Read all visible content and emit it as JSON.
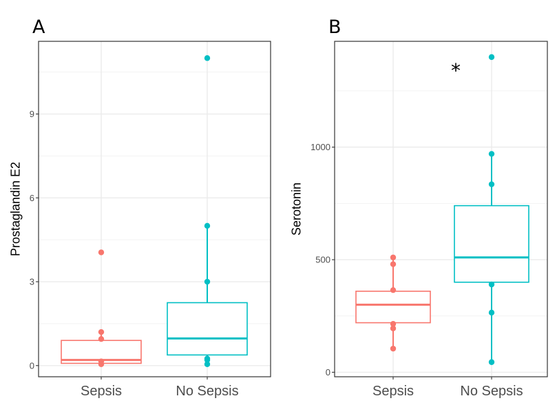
{
  "chart_data": [
    {
      "type": "box",
      "panel_label": "A",
      "ylabel": "Prostaglandin E2",
      "xlabel": "",
      "ylim": [
        -0.4,
        11.6
      ],
      "yticks": [
        0,
        3,
        6,
        9
      ],
      "ytick_labels": [
        "0",
        "3",
        "6",
        "9"
      ],
      "grid": true,
      "categories": [
        "Sepsis",
        "No Sepsis"
      ],
      "colors": [
        "#F8766D",
        "#00BFC4"
      ],
      "boxes": [
        {
          "category": "Sepsis",
          "whisker_low": 0.05,
          "q1": 0.08,
          "median": 0.2,
          "q3": 0.9,
          "whisker_high": 1.2
        },
        {
          "category": "No Sepsis",
          "whisker_low": 0.05,
          "q1": 0.38,
          "median": 0.97,
          "q3": 2.25,
          "whisker_high": 5.0
        }
      ],
      "points": [
        {
          "category": "Sepsis",
          "values": [
            4.05,
            1.2,
            0.95,
            0.15,
            0.05
          ]
        },
        {
          "category": "No Sepsis",
          "values": [
            11.0,
            5.0,
            3.0,
            0.25,
            0.2,
            0.05
          ]
        }
      ],
      "annotations": []
    },
    {
      "type": "box",
      "panel_label": "B",
      "ylabel": "Serotonin",
      "xlabel": "",
      "ylim": [
        -20,
        1470
      ],
      "yticks": [
        0,
        500,
        1000
      ],
      "ytick_labels": [
        "0",
        "500",
        "1000"
      ],
      "grid": true,
      "categories": [
        "Sepsis",
        "No Sepsis"
      ],
      "colors": [
        "#F8766D",
        "#00BFC4"
      ],
      "boxes": [
        {
          "category": "Sepsis",
          "whisker_low": 105,
          "q1": 220,
          "median": 300,
          "q3": 360,
          "whisker_high": 510
        },
        {
          "category": "No Sepsis",
          "whisker_low": 45,
          "q1": 400,
          "median": 510,
          "q3": 740,
          "whisker_high": 970
        }
      ],
      "points": [
        {
          "category": "Sepsis",
          "values": [
            510,
            480,
            365,
            215,
            195,
            105
          ]
        },
        {
          "category": "No Sepsis",
          "values": [
            1400,
            970,
            835,
            390,
            265,
            45
          ]
        }
      ],
      "annotations": [
        {
          "text": "*",
          "category": "No Sepsis",
          "y": 1360
        }
      ]
    }
  ]
}
